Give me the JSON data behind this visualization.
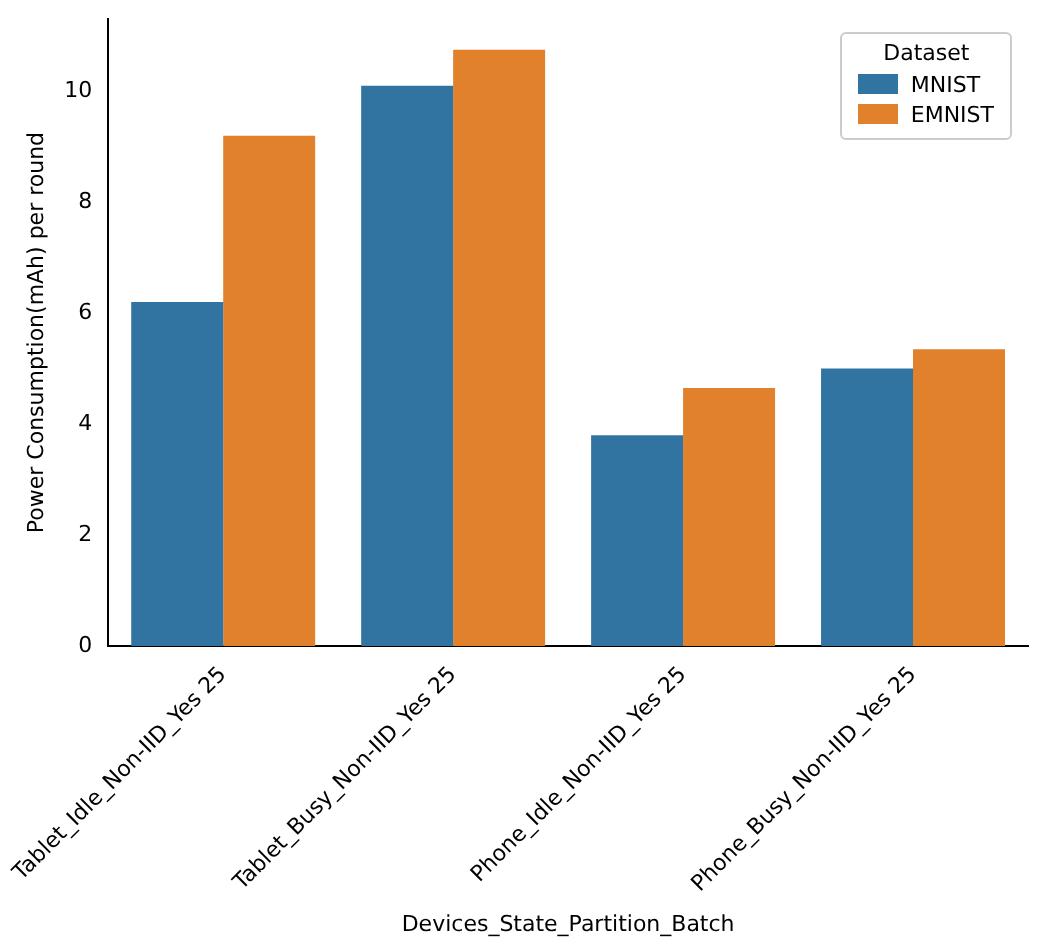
{
  "chart_data": {
    "type": "bar",
    "xlabel": "Devices_State_Partition_Batch",
    "ylabel": "Power Consumption(mAh) per round",
    "legend_title": "Dataset",
    "categories": [
      "Tablet_Idle_Non-IID_Yes 25",
      "Tablet_Busy_Non-IID_Yes 25",
      "Phone_Idle_Non-IID_Yes 25",
      "Phone_Busy_Non-IID_Yes 25"
    ],
    "series": [
      {
        "name": "MNIST",
        "color": "#3274a1",
        "values": [
          6.2,
          10.1,
          3.8,
          5.0
        ]
      },
      {
        "name": "EMNIST",
        "color": "#e1812c",
        "values": [
          9.2,
          10.75,
          4.65,
          5.35
        ]
      }
    ],
    "ylim": [
      0,
      11.3
    ],
    "yticks": [
      0,
      2,
      4,
      6,
      8,
      10
    ],
    "grid": false,
    "legend": "top right"
  }
}
